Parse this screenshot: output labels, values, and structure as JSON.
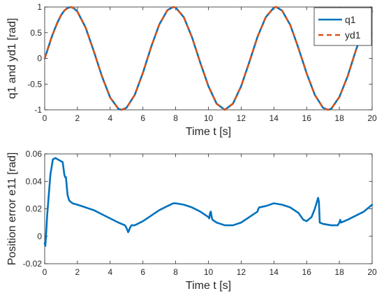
{
  "chart_data": [
    {
      "type": "line",
      "xlabel": "Time t [s]",
      "ylabel": "q1 and yd1 [rad]",
      "xlim": [
        0,
        20
      ],
      "ylim": [
        -1,
        1
      ],
      "xticks": [
        "0",
        "2",
        "4",
        "6",
        "8",
        "10",
        "12",
        "14",
        "16",
        "18",
        "20"
      ],
      "yticks": [
        "-1",
        "-0.5",
        "0",
        "0.5",
        "1"
      ],
      "grid": false,
      "legend_position": "top-right",
      "series": [
        {
          "name": "q1",
          "color": "#0072BD",
          "style": "solid",
          "x": [
            0,
            0.2,
            0.4,
            0.6,
            0.8,
            1.0,
            1.2,
            1.4,
            1.6,
            1.8,
            2.0,
            2.5,
            3.0,
            3.5,
            4.0,
            4.5,
            4.7,
            5.0,
            5.5,
            6.0,
            6.5,
            7.0,
            7.5,
            7.85,
            8.0,
            8.5,
            9.0,
            9.5,
            10.0,
            10.5,
            11.0,
            11.5,
            12.0,
            12.5,
            13.0,
            13.5,
            14.0,
            14.14,
            14.5,
            15.0,
            15.5,
            16.0,
            16.5,
            17.0,
            17.3,
            17.5,
            18.0,
            18.5,
            19.0,
            19.5,
            20.0
          ],
          "y": [
            0.0,
            0.19,
            0.39,
            0.56,
            0.71,
            0.84,
            0.93,
            0.98,
            1.0,
            0.97,
            0.91,
            0.6,
            0.14,
            -0.35,
            -0.76,
            -0.98,
            -1.0,
            -0.96,
            -0.71,
            -0.28,
            0.22,
            0.66,
            0.94,
            1.0,
            0.99,
            0.8,
            0.41,
            -0.08,
            -0.54,
            -0.88,
            -1.0,
            -0.88,
            -0.54,
            -0.07,
            0.42,
            0.8,
            0.99,
            1.0,
            0.93,
            0.65,
            0.2,
            -0.29,
            -0.71,
            -0.96,
            -1.0,
            -0.98,
            -0.75,
            -0.35,
            0.15,
            0.6,
            0.91
          ]
        },
        {
          "name": "yd1",
          "color": "#D95319",
          "style": "dashed",
          "x": [
            0,
            0.2,
            0.4,
            0.6,
            0.8,
            1.0,
            1.2,
            1.4,
            1.6,
            1.8,
            2.0,
            2.5,
            3.0,
            3.5,
            4.0,
            4.5,
            4.7,
            5.0,
            5.5,
            6.0,
            6.5,
            7.0,
            7.5,
            7.85,
            8.0,
            8.5,
            9.0,
            9.5,
            10.0,
            10.5,
            11.0,
            11.5,
            12.0,
            12.5,
            13.0,
            13.5,
            14.0,
            14.14,
            14.5,
            15.0,
            15.5,
            16.0,
            16.5,
            17.0,
            17.3,
            17.5,
            18.0,
            18.5,
            19.0,
            19.5,
            20.0
          ],
          "y": [
            0.0,
            0.2,
            0.39,
            0.56,
            0.72,
            0.84,
            0.93,
            0.99,
            1.0,
            0.97,
            0.91,
            0.6,
            0.14,
            -0.35,
            -0.76,
            -0.98,
            -1.0,
            -0.96,
            -0.71,
            -0.28,
            0.22,
            0.66,
            0.94,
            1.0,
            0.99,
            0.8,
            0.41,
            -0.08,
            -0.54,
            -0.88,
            -1.0,
            -0.88,
            -0.54,
            -0.07,
            0.42,
            0.8,
            0.99,
            1.0,
            0.93,
            0.65,
            0.2,
            -0.29,
            -0.71,
            -0.96,
            -1.0,
            -0.98,
            -0.75,
            -0.35,
            0.15,
            0.6,
            0.91
          ]
        }
      ]
    },
    {
      "type": "line",
      "xlabel": "Time t [s]",
      "ylabel": "Position error e11 [rad]",
      "xlim": [
        0,
        20
      ],
      "ylim": [
        -0.02,
        0.06
      ],
      "xticks": [
        "0",
        "2",
        "4",
        "6",
        "8",
        "10",
        "12",
        "14",
        "16",
        "18",
        "20"
      ],
      "yticks": [
        "-0.02",
        "0",
        "0.02",
        "0.04",
        "0.06"
      ],
      "grid": false,
      "series": [
        {
          "color": "#0072BD",
          "style": "solid",
          "x": [
            0,
            0.04,
            0.08,
            0.15,
            0.25,
            0.35,
            0.5,
            0.65,
            0.8,
            0.95,
            1.1,
            1.2,
            1.25,
            1.3,
            1.35,
            1.4,
            1.5,
            1.7,
            2.0,
            2.5,
            3.0,
            3.5,
            4.0,
            4.5,
            4.9,
            5.0,
            5.1,
            5.15,
            5.2,
            5.3,
            5.5,
            6.0,
            6.5,
            7.0,
            7.5,
            7.85,
            8.0,
            8.5,
            9.0,
            9.5,
            10.0,
            10.05,
            10.1,
            10.15,
            10.2,
            10.25,
            10.5,
            11.0,
            11.5,
            12.0,
            12.5,
            13.0,
            13.05,
            13.1,
            13.5,
            14.0,
            14.5,
            15.0,
            15.5,
            15.8,
            16.0,
            16.3,
            16.5,
            16.65,
            16.7,
            16.75,
            16.8,
            17.0,
            17.5,
            17.9,
            18.0,
            18.05,
            18.1,
            18.5,
            19.0,
            19.5,
            20.0
          ],
          "y": [
            -0.005,
            -0.007,
            0.0,
            0.015,
            0.03,
            0.045,
            0.056,
            0.057,
            0.056,
            0.055,
            0.054,
            0.045,
            0.043,
            0.043,
            0.036,
            0.03,
            0.026,
            0.024,
            0.023,
            0.021,
            0.019,
            0.016,
            0.013,
            0.01,
            0.008,
            0.006,
            0.003,
            0.004,
            0.006,
            0.008,
            0.008,
            0.011,
            0.015,
            0.019,
            0.022,
            0.024,
            0.024,
            0.023,
            0.021,
            0.018,
            0.014,
            0.013,
            0.017,
            0.018,
            0.014,
            0.012,
            0.01,
            0.008,
            0.008,
            0.01,
            0.014,
            0.018,
            0.02,
            0.021,
            0.022,
            0.024,
            0.023,
            0.021,
            0.017,
            0.012,
            0.011,
            0.014,
            0.02,
            0.026,
            0.028,
            0.025,
            0.01,
            0.009,
            0.008,
            0.008,
            0.01,
            0.012,
            0.01,
            0.012,
            0.015,
            0.018,
            0.023
          ]
        }
      ]
    }
  ]
}
